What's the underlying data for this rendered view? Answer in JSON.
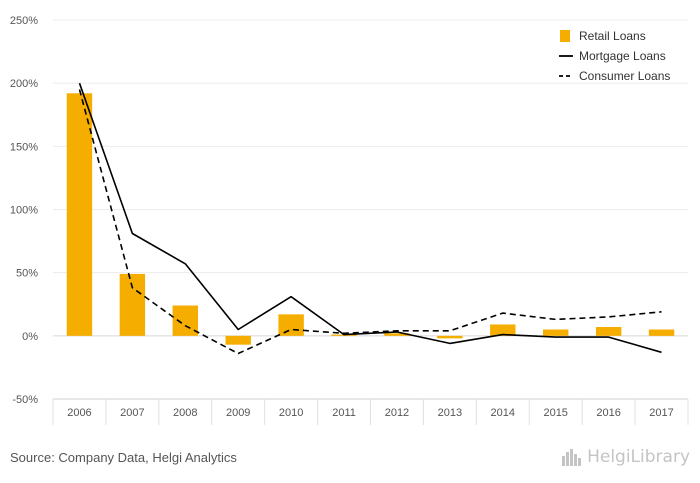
{
  "chart_data": {
    "type": "bar",
    "categories": [
      "2006",
      "2007",
      "2008",
      "2009",
      "2010",
      "2011",
      "2012",
      "2013",
      "2014",
      "2015",
      "2016",
      "2017"
    ],
    "series": [
      {
        "name": "Retail Loans",
        "type": "bar",
        "color": "#f5ad00",
        "values": [
          192,
          49,
          24,
          -7,
          17,
          1,
          2,
          -2,
          9,
          5,
          7,
          5
        ]
      },
      {
        "name": "Mortgage Loans",
        "type": "line",
        "style": "solid",
        "color": "#000000",
        "values": [
          200,
          81,
          57,
          5,
          31,
          1,
          3,
          -6,
          1,
          -1,
          -1,
          -13
        ]
      },
      {
        "name": "Consumer Loans",
        "type": "line",
        "style": "dashed",
        "color": "#000000",
        "values": [
          195,
          38,
          8,
          -14,
          5,
          2,
          4,
          4,
          18,
          13,
          15,
          19
        ]
      }
    ],
    "y_ticks": [
      "250%",
      "200%",
      "150%",
      "100%",
      "50%",
      "0%",
      "-50%"
    ],
    "ylim": [
      -50,
      250
    ],
    "y_unit": "%",
    "grid": "horizontal",
    "legend_position": "top-right"
  },
  "footer": {
    "source": "Source: Company Data, Helgi Analytics",
    "logo_text": "HelgiLibrary",
    "logo_icon": "city-skyline-icon"
  }
}
